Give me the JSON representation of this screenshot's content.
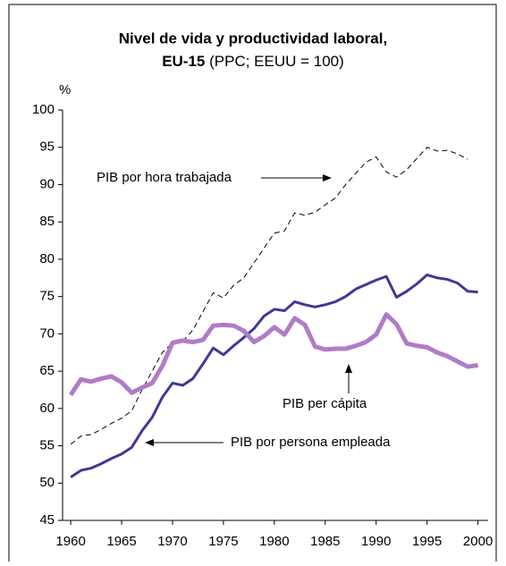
{
  "chart_data": {
    "type": "line",
    "title": "Nivel de vida y productividad laboral,",
    "subtitle_bold": "EU-15",
    "subtitle": "(PPC; EEUU = 100)",
    "y_label": "%",
    "x": [
      1960,
      1961,
      1962,
      1963,
      1964,
      1965,
      1966,
      1967,
      1968,
      1969,
      1970,
      1971,
      1972,
      1973,
      1974,
      1975,
      1976,
      1977,
      1978,
      1979,
      1980,
      1981,
      1982,
      1983,
      1984,
      1985,
      1986,
      1987,
      1988,
      1989,
      1990,
      1991,
      1992,
      1993,
      1994,
      1995,
      1996,
      1997,
      1998,
      1999,
      2000
    ],
    "series": [
      {
        "name": "PIB por hora trabajada",
        "color": "#000000",
        "dashed": true,
        "width": 1,
        "values": [
          55.2,
          56.3,
          56.5,
          57.2,
          58,
          58.7,
          59.7,
          62.5,
          65,
          67.5,
          68.8,
          69,
          70.5,
          73,
          75.5,
          74.8,
          76.5,
          77.5,
          79.5,
          81.5,
          83.5,
          83.8,
          86.2,
          85.9,
          86.3,
          87.3,
          88.2,
          90,
          91.5,
          93,
          93.7,
          91.7,
          91,
          92,
          93.5,
          95,
          94.5,
          94.6,
          94.1,
          93.4,
          null
        ]
      },
      {
        "name": "PIB por persona empleada",
        "color": "#3f3a93",
        "dashed": false,
        "width": 3,
        "values": [
          50.8,
          51.7,
          52,
          52.6,
          53.3,
          53.9,
          54.8,
          57,
          58.8,
          61.5,
          63.4,
          63.1,
          64,
          66,
          68.1,
          67.2,
          68.4,
          69.5,
          70.7,
          72.4,
          73.3,
          73.1,
          74.3,
          73.9,
          73.6,
          73.9,
          74.3,
          75,
          76,
          76.6,
          77.2,
          77.7,
          74.9,
          75.7,
          76.7,
          77.9,
          77.5,
          77.3,
          76.8,
          75.7,
          75.6
        ]
      },
      {
        "name": "PIB per cápita",
        "color": "#b07cc6",
        "dashed": false,
        "width": 5,
        "values": [
          61.8,
          63.9,
          63.6,
          64,
          64.3,
          63.5,
          62.1,
          62.8,
          63.4,
          65.7,
          68.8,
          69.1,
          68.9,
          69.2,
          71.1,
          71.2,
          71.1,
          70.4,
          68.9,
          69.7,
          70.9,
          69.9,
          72.1,
          71.2,
          68.3,
          67.9,
          68,
          68,
          68.4,
          68.9,
          69.9,
          72.6,
          71.3,
          68.7,
          68.4,
          68.2,
          67.5,
          67,
          66.3,
          65.6,
          65.8
        ]
      }
    ],
    "xlim": [
      1959.2,
      2001
    ],
    "xticks": [
      1960,
      1965,
      1970,
      1975,
      1980,
      1985,
      1990,
      1995,
      2000
    ],
    "ylim": [
      45,
      100
    ],
    "yticks": [
      45,
      50,
      55,
      60,
      65,
      70,
      75,
      80,
      85,
      90,
      95,
      100
    ]
  }
}
